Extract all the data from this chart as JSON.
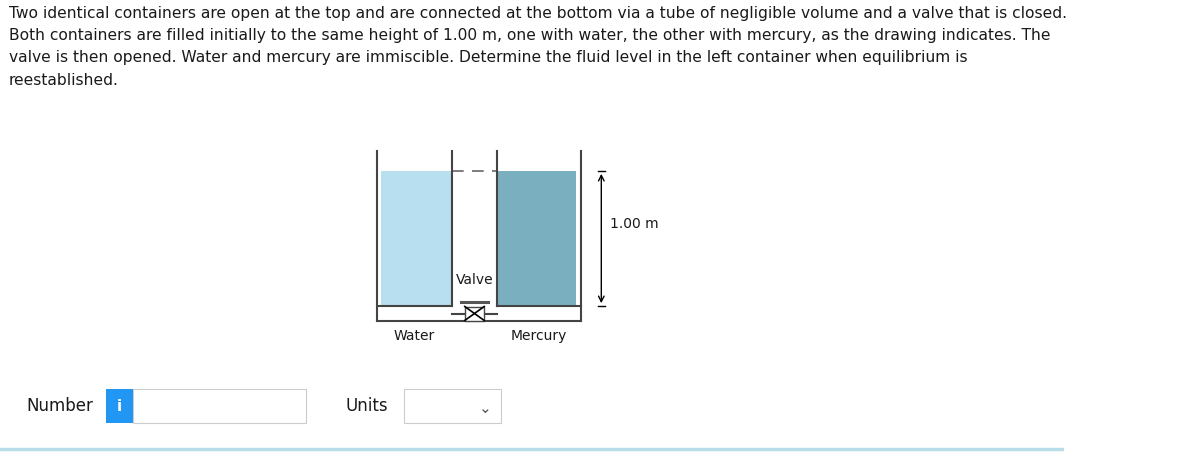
{
  "title_text": "Two identical containers are open at the top and are connected at the bottom via a tube of negligible volume and a valve that is closed.\nBoth containers are filled initially to the same height of 1.00 m, one with water, the other with mercury, as the drawing indicates. The\nvalve is then opened. Water and mercury are immiscible. Determine the fluid level in the left container when equilibrium is\nreestablished.",
  "background_color": "#ffffff",
  "water_color": "#b8dff0",
  "mercury_color": "#7aafc0",
  "container_outline_color": "#444444",
  "dashed_line_color": "#666666",
  "label_water": "Water",
  "label_mercury": "Mercury",
  "label_valve": "Valve",
  "label_height": "1.00 m",
  "number_label": "Number",
  "units_label": "Units",
  "info_button_color": "#2196F3",
  "info_button_text": "i",
  "bottom_line_color": "#b8dde8",
  "text_color": "#1a1a1a",
  "title_fontsize": 11.2,
  "label_fontsize": 10.0,
  "ui_fontsize": 12.0
}
